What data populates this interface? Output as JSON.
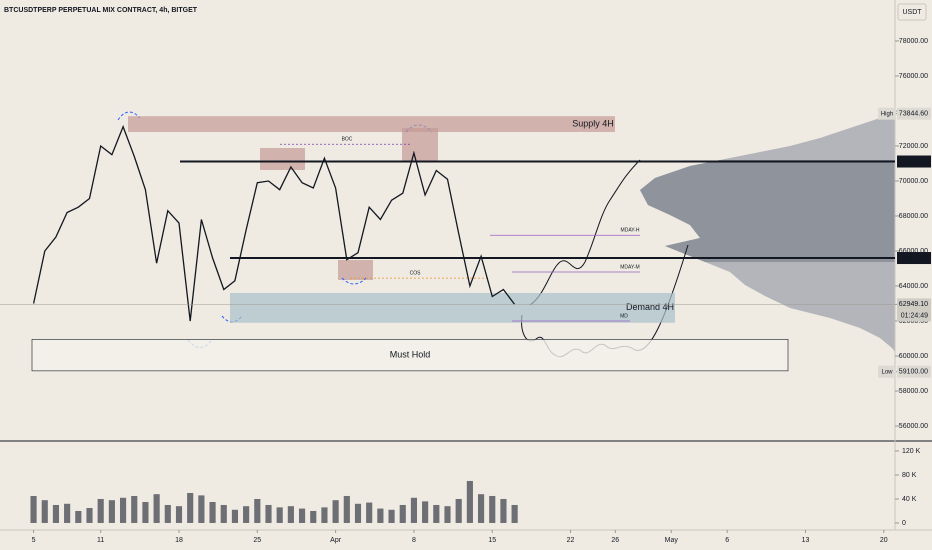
{
  "chart_data": {
    "type": "line",
    "title": "BTCUSDTPERP PERPETUAL MIX CONTRACT, 4h, BITGET",
    "currency": "USDT",
    "xlim": [
      "03-02",
      "05-21"
    ],
    "xticks": [
      {
        "value": "03-05",
        "label": "5"
      },
      {
        "value": "03-11",
        "label": "11"
      },
      {
        "value": "03-18",
        "label": "18"
      },
      {
        "value": "03-25",
        "label": "25"
      },
      {
        "value": "04-01",
        "label": "Apr"
      },
      {
        "value": "04-08",
        "label": "8"
      },
      {
        "value": "04-15",
        "label": "15"
      },
      {
        "value": "04-22",
        "label": "22"
      },
      {
        "value": "04-26",
        "label": "26"
      },
      {
        "value": "05-01",
        "label": "May"
      },
      {
        "value": "05-06",
        "label": "6"
      },
      {
        "value": "05-13",
        "label": "13"
      },
      {
        "value": "05-20",
        "label": "20"
      }
    ],
    "ylim": [
      55200,
      80340
    ],
    "yticks": [
      {
        "value": 56000,
        "label": "56000.00"
      },
      {
        "value": 58000,
        "label": "58000.00"
      },
      {
        "value": 60000,
        "label": "60000.00"
      },
      {
        "value": 62000,
        "label": "62000.00"
      },
      {
        "value": 64000,
        "label": "64000.00"
      },
      {
        "value": 66000,
        "label": "66000.00"
      },
      {
        "value": 68000,
        "label": "68000.00"
      },
      {
        "value": 70000,
        "label": "70000.00"
      },
      {
        "value": 72000,
        "label": "72000.00"
      },
      {
        "value": 74000,
        "label": "74000.00"
      },
      {
        "value": 76000,
        "label": "76000.00"
      },
      {
        "value": 78000,
        "label": "78000.00"
      }
    ],
    "y2lim": [
      -11700,
      133300
    ],
    "y2ticks": [
      {
        "value": 0,
        "label": "0"
      },
      {
        "value": 40000,
        "label": "40 K"
      },
      {
        "value": 80000,
        "label": "80 K"
      },
      {
        "value": 120000,
        "label": "120 K"
      }
    ],
    "grid": false,
    "x": [
      "03-05",
      "03-06",
      "03-07",
      "03-08",
      "03-09",
      "03-10",
      "03-11",
      "03-12",
      "03-13",
      "03-14",
      "03-15",
      "03-16",
      "03-17",
      "03-18",
      "03-19",
      "03-20",
      "03-21",
      "03-22",
      "03-23",
      "03-24",
      "03-25",
      "03-26",
      "03-27",
      "03-28",
      "03-29",
      "03-30",
      "03-31",
      "04-01",
      "04-02",
      "04-03",
      "04-04",
      "04-05",
      "04-06",
      "04-07",
      "04-08",
      "04-09",
      "04-10",
      "04-11",
      "04-12",
      "04-13",
      "04-14",
      "04-15",
      "04-16",
      "04-17"
    ],
    "series": [
      {
        "color": "#131722",
        "values": [
          63000,
          66000,
          66800,
          68200,
          68500,
          69000,
          72000,
          71500,
          73100,
          71400,
          69500,
          65300,
          68300,
          67600,
          62000,
          67800,
          65600,
          63800,
          64300,
          67200,
          69900,
          70000,
          69500,
          70800,
          69900,
          69600,
          71300,
          69600,
          65500,
          65900,
          68500,
          67800,
          68900,
          69300,
          71600,
          69200,
          70600,
          70100,
          67000,
          64000,
          65700,
          63400,
          63800,
          62950
        ]
      },
      {
        "type": "bar",
        "axis": "y2",
        "color": "#6d6f75",
        "values": [
          45000,
          38000,
          30000,
          32000,
          20000,
          25000,
          40000,
          38000,
          42000,
          45000,
          35000,
          48000,
          30000,
          28000,
          50000,
          46000,
          35000,
          30000,
          22000,
          28000,
          40000,
          30000,
          26000,
          28000,
          24000,
          20000,
          26000,
          38000,
          45000,
          32000,
          34000,
          24000,
          22000,
          30000,
          42000,
          36000,
          30000,
          28000,
          40000,
          70000,
          48000,
          45000,
          40000,
          30000
        ]
      }
    ],
    "zones": [
      {
        "text": "Supply 4H",
        "range": [
          72800,
          73700
        ],
        "color": "#c49a95"
      },
      {
        "text": "Demand 4H",
        "range": [
          61900,
          63600
        ],
        "color": "#a9c0cc"
      },
      {
        "text": "Must Hold",
        "range": [
          59150,
          60950
        ],
        "color": "#f3f1ea"
      }
    ],
    "levels": [
      {
        "text": "BOC",
        "value": 72100,
        "color": "#7b3fb0"
      },
      {
        "text": "COS",
        "value": 64450,
        "color": "#e8922f"
      },
      {
        "text": "MDAY-H",
        "value": 66900,
        "color": "#9a5cc0"
      },
      {
        "text": "MDAY-M",
        "value": 64800,
        "color": "#9a5cc0"
      },
      {
        "text": "MD",
        "value": 62000,
        "color": "#9a5cc0"
      }
    ],
    "price_labels": [
      {
        "tag": "High",
        "value": 73844.6,
        "label": "73844.60",
        "color": "#dcdad3"
      },
      {
        "value": 71112.06,
        "label": "71112.06",
        "color": "#131722"
      },
      {
        "value": 65597.06,
        "label": "65597.06",
        "color": "#131722"
      },
      {
        "value": 62949.1,
        "label": "62949.10",
        "countdown": "01:24:49",
        "color": "#cfccc4"
      },
      {
        "tag": "Low",
        "value": 59100,
        "label": "59100.00",
        "color": "#dcdad3"
      }
    ]
  }
}
